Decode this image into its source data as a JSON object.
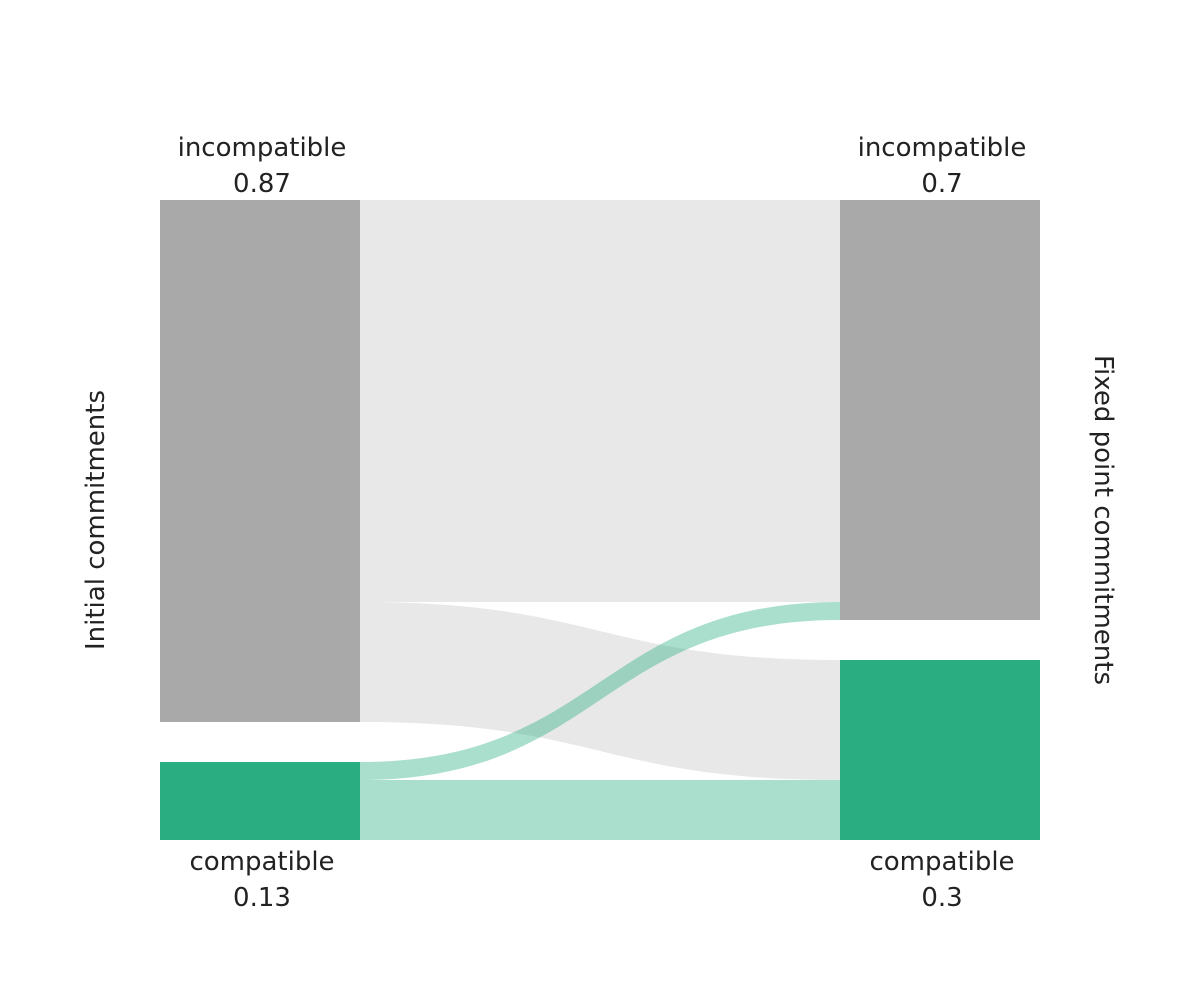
{
  "chart_data": {
    "type": "sankey",
    "left_axis_label": "Initial commitments",
    "right_axis_label": "Fixed point commitments",
    "left_nodes": [
      {
        "name": "incompatible",
        "value_label": "0.87",
        "value": 0.87,
        "color": "#a9a9a9"
      },
      {
        "name": "compatible",
        "value_label": "0.13",
        "value": 0.13,
        "color": "#2aae81"
      }
    ],
    "right_nodes": [
      {
        "name": "incompatible",
        "value_label": "0.7",
        "value": 0.7,
        "color": "#a9a9a9"
      },
      {
        "name": "compatible",
        "value_label": "0.3",
        "value": 0.3,
        "color": "#2aae81"
      }
    ],
    "flows": [
      {
        "source": "incompatible",
        "target": "incompatible",
        "value": 0.67,
        "color": "#e8e8e8"
      },
      {
        "source": "incompatible",
        "target": "compatible",
        "value": 0.2,
        "color": "#e8e8e8"
      },
      {
        "source": "compatible",
        "target": "incompatible",
        "value": 0.03,
        "color": "#2aae81"
      },
      {
        "source": "compatible",
        "target": "compatible",
        "value": 0.1,
        "color": "#2aae81"
      }
    ]
  }
}
